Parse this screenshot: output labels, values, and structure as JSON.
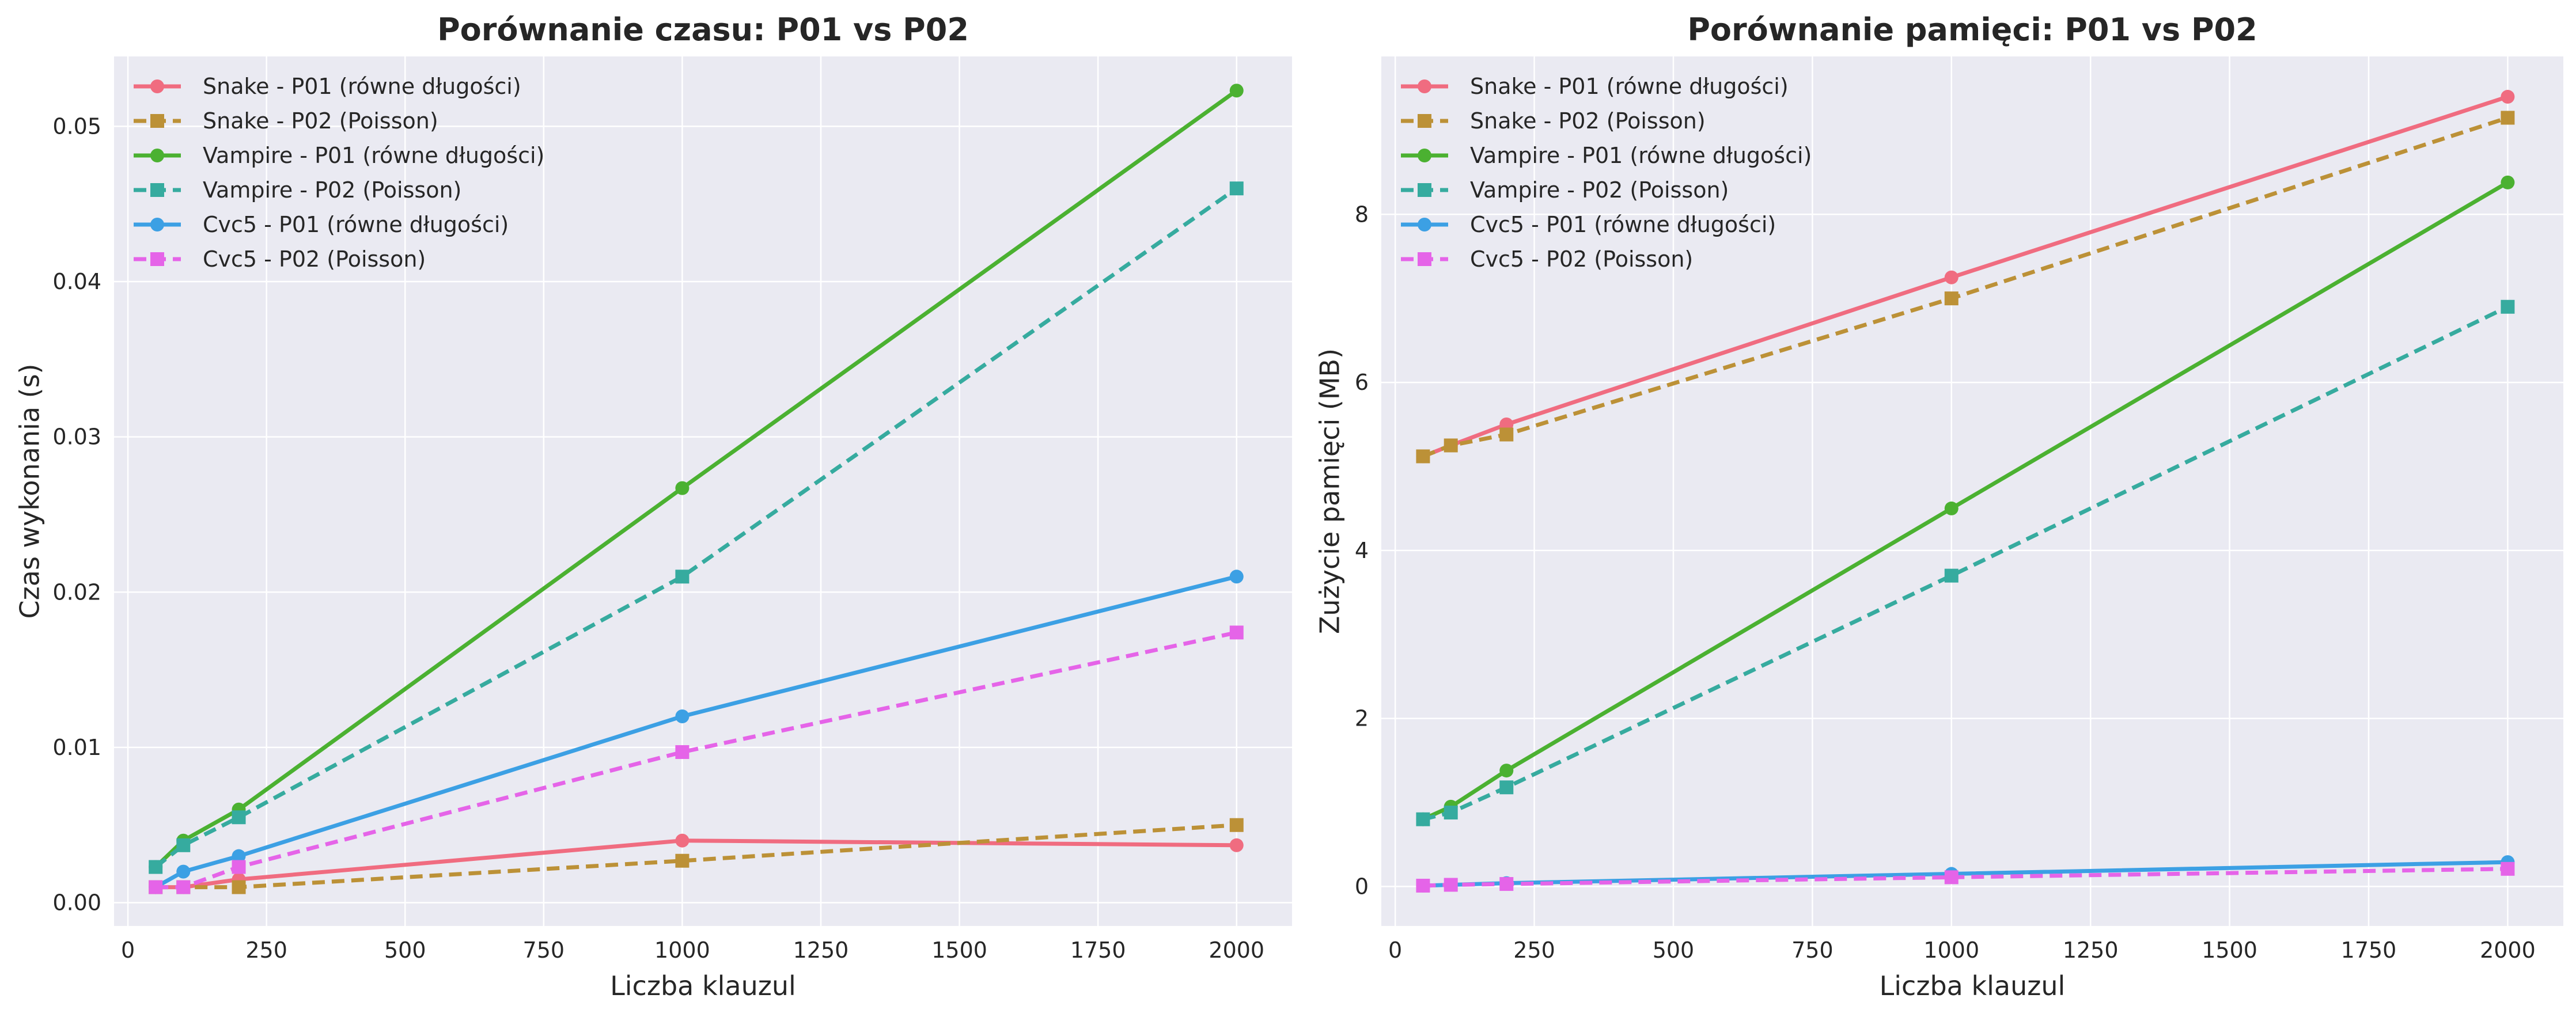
{
  "chart_data": [
    {
      "type": "line",
      "title": "Porównanie czasu: P01 vs P02",
      "xlabel": "Liczba klauzul",
      "ylabel": "Czas wykonania (s)",
      "x": [
        50,
        100,
        200,
        1000,
        2000
      ],
      "xlim": [
        -25,
        2100
      ],
      "ylim": [
        -0.0015,
        0.0545
      ],
      "xticks": [
        0,
        250,
        500,
        750,
        1000,
        1250,
        1500,
        1750,
        2000
      ],
      "yticks": [
        0.0,
        0.01,
        0.02,
        0.03,
        0.04,
        0.05
      ],
      "ytick_decimals": 2,
      "grid": true,
      "legend_position": "top-left",
      "series": [
        {
          "name": "Snake - P01 (równe długości)",
          "color": "#f06c80",
          "dash": false,
          "marker": "circle",
          "values": [
            0.001,
            0.001,
            0.0015,
            0.004,
            0.0037
          ]
        },
        {
          "name": "Snake - P02 (Poisson)",
          "color": "#bc9137",
          "dash": true,
          "marker": "square",
          "values": [
            0.001,
            0.001,
            0.001,
            0.0027,
            0.005
          ]
        },
        {
          "name": "Vampire - P01 (równe długości)",
          "color": "#4bb131",
          "dash": false,
          "marker": "circle",
          "values": [
            0.0023,
            0.004,
            0.006,
            0.0267,
            0.0523
          ]
        },
        {
          "name": "Vampire - P02 (Poisson)",
          "color": "#36ab9f",
          "dash": true,
          "marker": "square",
          "values": [
            0.0023,
            0.0037,
            0.0055,
            0.021,
            0.046
          ]
        },
        {
          "name": "Cvc5 - P01 (równe długości)",
          "color": "#3ca0e4",
          "dash": false,
          "marker": "circle",
          "values": [
            0.001,
            0.002,
            0.003,
            0.012,
            0.021
          ]
        },
        {
          "name": "Cvc5 - P02 (Poisson)",
          "color": "#e564e8",
          "dash": true,
          "marker": "square",
          "values": [
            0.001,
            0.001,
            0.0023,
            0.0097,
            0.0174
          ]
        }
      ]
    },
    {
      "type": "line",
      "title": "Porównanie pamięci: P01 vs P02",
      "xlabel": "Liczba klauzul",
      "ylabel": "Zużycie pamięci (MB)",
      "x": [
        50,
        100,
        200,
        1000,
        2000
      ],
      "xlim": [
        -25,
        2100
      ],
      "ylim": [
        -0.47,
        9.88
      ],
      "xticks": [
        0,
        250,
        500,
        750,
        1000,
        1250,
        1500,
        1750,
        2000
      ],
      "yticks": [
        0,
        2,
        4,
        6,
        8
      ],
      "ytick_decimals": 0,
      "grid": true,
      "legend_position": "top-left",
      "series": [
        {
          "name": "Snake - P01 (równe długości)",
          "color": "#f06c80",
          "dash": false,
          "marker": "circle",
          "values": [
            5.12,
            5.25,
            5.5,
            7.25,
            9.4
          ]
        },
        {
          "name": "Snake - P02 (Poisson)",
          "color": "#bc9137",
          "dash": true,
          "marker": "square",
          "values": [
            5.12,
            5.25,
            5.38,
            7.0,
            9.15
          ]
        },
        {
          "name": "Vampire - P01 (równe długości)",
          "color": "#4bb131",
          "dash": false,
          "marker": "circle",
          "values": [
            0.8,
            0.95,
            1.38,
            4.5,
            8.38
          ]
        },
        {
          "name": "Vampire - P02 (Poisson)",
          "color": "#36ab9f",
          "dash": true,
          "marker": "square",
          "values": [
            0.8,
            0.88,
            1.18,
            3.7,
            6.9
          ]
        },
        {
          "name": "Cvc5 - P01 (równe długości)",
          "color": "#3ca0e4",
          "dash": false,
          "marker": "circle",
          "values": [
            0.01,
            0.02,
            0.04,
            0.15,
            0.29
          ]
        },
        {
          "name": "Cvc5 - P02 (Poisson)",
          "color": "#e564e8",
          "dash": true,
          "marker": "square",
          "values": [
            0.01,
            0.02,
            0.03,
            0.11,
            0.21
          ]
        }
      ]
    }
  ],
  "colors": {
    "plot_background": "#eaeaf2",
    "grid": "#ffffff",
    "text": "#262626"
  }
}
